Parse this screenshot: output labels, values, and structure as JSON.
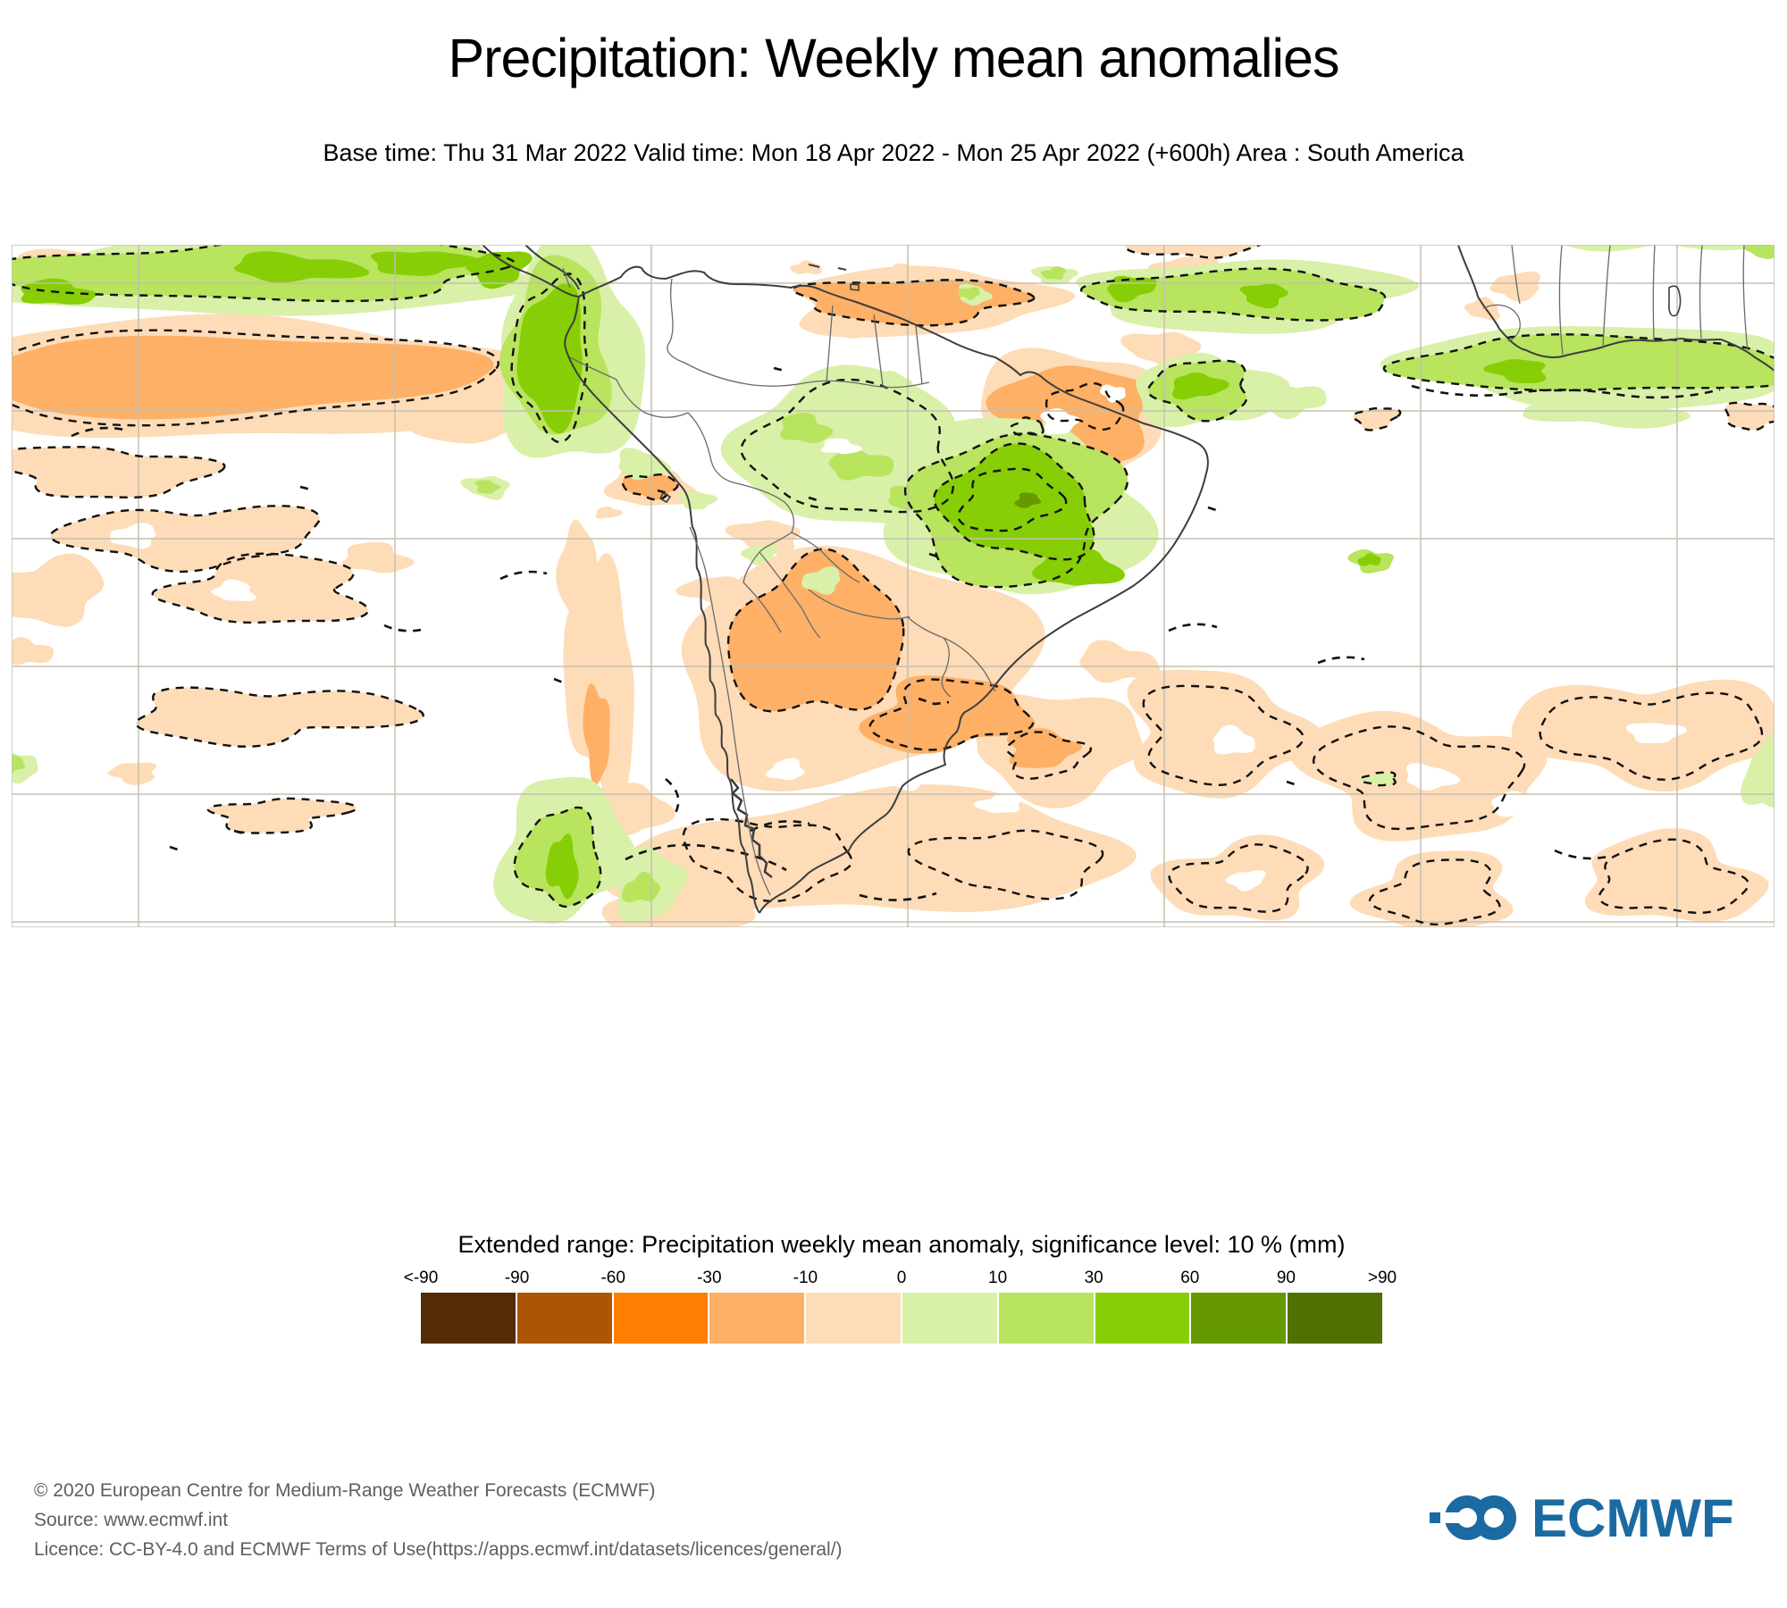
{
  "header": {
    "title": "Precipitation: Weekly mean anomalies",
    "subtitle": "Base time: Thu 31 Mar 2022 Valid time: Mon 18 Apr 2022 - Mon 25 Apr 2022 (+600h) Area : South America"
  },
  "legend": {
    "title": "Extended range: Precipitation weekly mean anomaly, significance level: 10 % (mm)",
    "tick_labels": [
      "<-90",
      "-90",
      "-60",
      "-30",
      "-10",
      "0",
      "10",
      "30",
      "60",
      "90",
      ">90"
    ],
    "colors": [
      "#542b04",
      "#ac5605",
      "#fc7f03",
      "#fdb066",
      "#fddcb7",
      "#d9f0a8",
      "#b8e45e",
      "#87ce06",
      "#669900",
      "#4f7002"
    ]
  },
  "map": {
    "grid_color": "#c4bfb2",
    "coast_color": "#3d3d3d",
    "border_color": "#6a6a6a",
    "contour_color": "#111111"
  },
  "footer": {
    "copyright": "© 2020 European Centre for Medium-Range Weather Forecasts (ECMWF)",
    "source": "Source: www.ecmwf.int",
    "licence": "Licence: CC-BY-4.0 and ECMWF Terms of Use(https://apps.ecmwf.int/datasets/licences/general/)"
  },
  "logo": {
    "text": "ECMWF",
    "color": "#1b6aa2"
  }
}
